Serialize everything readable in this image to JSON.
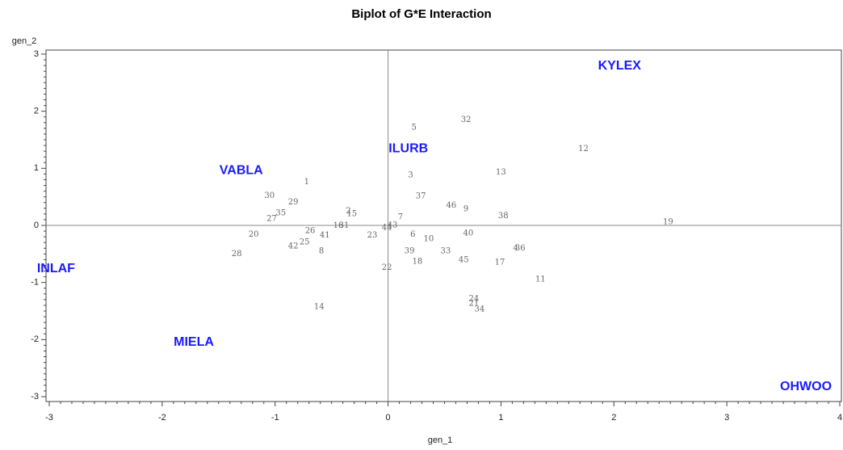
{
  "chart_data": {
    "type": "scatter",
    "title": "Biplot of G*E Interaction",
    "x_label": "gen_1",
    "y_label": "gen_2",
    "xlim": [
      -3,
      4
    ],
    "ylim": [
      -3,
      3
    ],
    "xticks": [
      -3,
      -2,
      -1,
      0,
      1,
      2,
      3,
      4
    ],
    "yticks": [
      -3,
      -2,
      -1,
      0,
      1,
      2,
      3
    ],
    "reference_lines": true,
    "genotypes": {
      "color": "#666666",
      "labels": [
        "32",
        "5",
        "12",
        "13",
        "3",
        "1",
        "30",
        "37",
        "29",
        "46",
        "9",
        "2",
        "15",
        "35",
        "27",
        "7",
        "38",
        "19",
        "16",
        "31",
        "44",
        "43",
        "26",
        "41",
        "20",
        "23",
        "6",
        "40",
        "10",
        "25",
        "42",
        "8",
        "4",
        "36",
        "28",
        "39",
        "33",
        "45",
        "18",
        "17",
        "22",
        "11",
        "24",
        "21",
        "34",
        "14"
      ],
      "x": [
        0.69,
        0.23,
        1.73,
        1.0,
        0.2,
        -0.72,
        -1.05,
        0.29,
        -0.84,
        0.56,
        0.69,
        -0.35,
        -0.32,
        -0.95,
        -1.03,
        0.11,
        1.02,
        2.48,
        -0.44,
        -0.39,
        -0.01,
        0.04,
        -0.69,
        -0.56,
        -1.19,
        -0.14,
        0.22,
        0.71,
        0.36,
        -0.74,
        -0.84,
        -0.59,
        1.13,
        1.17,
        -1.34,
        0.19,
        0.51,
        0.67,
        0.26,
        0.99,
        -0.01,
        1.35,
        0.76,
        0.76,
        0.81,
        -0.61
      ],
      "y": [
        1.85,
        1.71,
        1.34,
        0.93,
        0.88,
        0.76,
        0.52,
        0.51,
        0.4,
        0.35,
        0.28,
        0.25,
        0.2,
        0.21,
        0.11,
        0.14,
        0.16,
        0.06,
        -0.01,
        -0.01,
        -0.04,
        0.0,
        -0.1,
        -0.18,
        -0.16,
        -0.18,
        -0.16,
        -0.14,
        -0.24,
        -0.3,
        -0.37,
        -0.45,
        -0.4,
        -0.4,
        -0.5,
        -0.45,
        -0.45,
        -0.61,
        -0.64,
        -0.65,
        -0.74,
        -0.95,
        -1.29,
        -1.37,
        -1.47,
        -1.43
      ]
    },
    "environments": {
      "color": "#1a1aff",
      "labels": [
        "KYLEX",
        "VABLA",
        "ILURB",
        "INLAF",
        "MIELA",
        "OHWOO"
      ],
      "x": [
        2.05,
        -1.3,
        0.18,
        -2.94,
        -1.72,
        3.7
      ],
      "y": [
        2.79,
        0.96,
        1.34,
        -0.76,
        -2.05,
        -2.83
      ]
    }
  }
}
